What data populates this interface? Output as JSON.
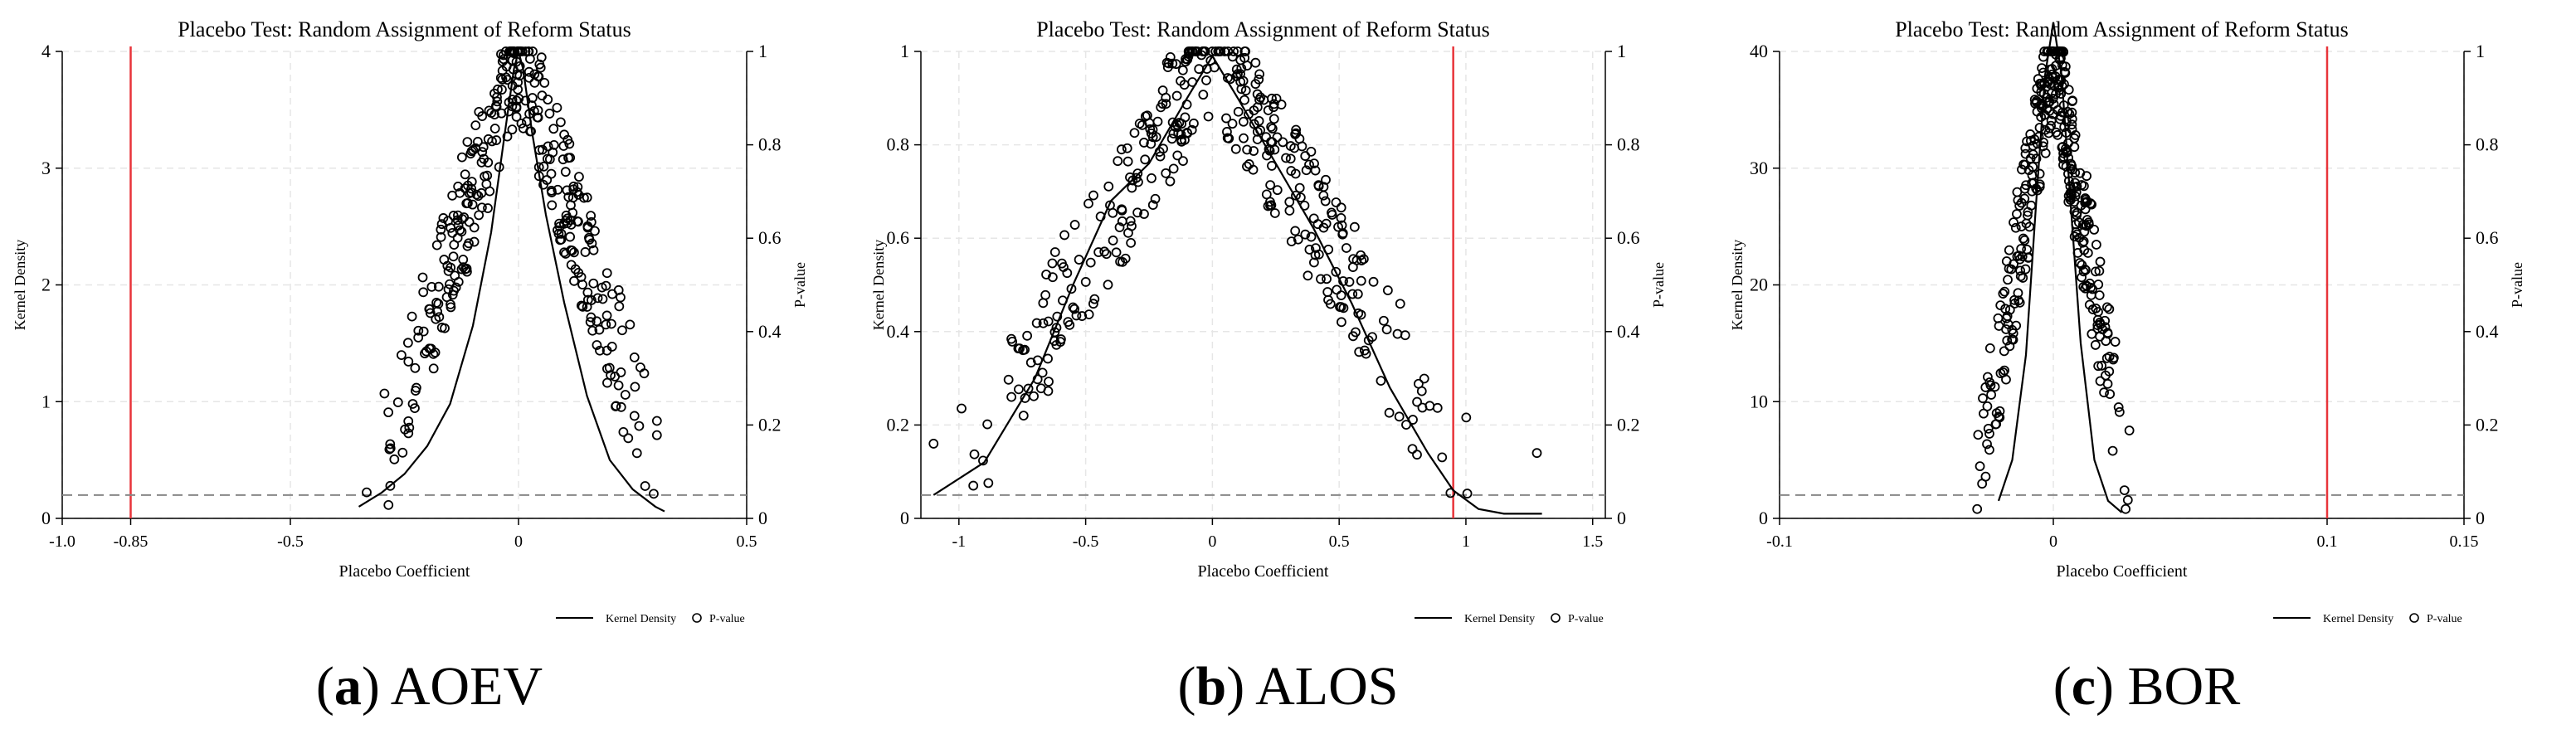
{
  "charts": [
    {
      "caption_letter": "a",
      "caption_name": "AOEV",
      "chart_data": {
        "type": "scatter",
        "title": "Placebo Test: Random Assignment of Reform Status",
        "xlabel": "Placebo Coefficient",
        "ylabel_left": "Kernel Density",
        "ylabel_right": "P-value",
        "xlim": [
          -1.0,
          0.5
        ],
        "ylim_left": [
          0,
          4
        ],
        "ylim_right": [
          0,
          1
        ],
        "xticks": [
          "-1.0",
          "-0.85",
          "-0.5",
          "0",
          "0.5"
        ],
        "xtick_values": [
          -1.0,
          -0.85,
          -0.5,
          0,
          0.5
        ],
        "yticks_left": [
          "0",
          "1",
          "2",
          "3",
          "4"
        ],
        "yticks_right": [
          "0",
          "0.2",
          "0.4",
          "0.6",
          "0.8",
          "1"
        ],
        "vline": -0.85,
        "hline_pvalue": 0.05,
        "grid": true,
        "legend": {
          "position": "bottom-right",
          "entries": [
            "Kernel Density",
            "P-value"
          ]
        },
        "series": [
          {
            "name": "Kernel Density",
            "type": "line",
            "x": [
              -0.35,
              -0.3,
              -0.25,
              -0.2,
              -0.15,
              -0.1,
              -0.06,
              -0.03,
              -0.01,
              0.0,
              0.01,
              0.03,
              0.06,
              0.1,
              0.15,
              0.2,
              0.25,
              0.3,
              0.32
            ],
            "y": [
              0.1,
              0.22,
              0.38,
              0.62,
              0.98,
              1.65,
              2.45,
              3.3,
              3.85,
              4.0,
              3.85,
              3.3,
              2.6,
              1.85,
              1.05,
              0.5,
              0.25,
              0.1,
              0.06
            ]
          },
          {
            "name": "P-value",
            "type": "scatter",
            "spread": 0.34,
            "center": 0.0,
            "count": 360,
            "seed": 7
          }
        ]
      }
    },
    {
      "caption_letter": "b",
      "caption_name": "ALOS",
      "chart_data": {
        "type": "scatter",
        "title": "Placebo Test: Random Assignment of Reform Status",
        "xlabel": "Placebo Coefficient",
        "ylabel_left": "Kernel Density",
        "ylabel_right": "P-value",
        "xlim": [
          -1.15,
          1.55
        ],
        "ylim_left": [
          0,
          1
        ],
        "ylim_right": [
          0,
          1
        ],
        "xticks": [
          "-1",
          "-0.5",
          "0",
          "0.5",
          "1",
          "1.5"
        ],
        "xtick_values": [
          -1,
          -0.5,
          0,
          0.5,
          1,
          1.5
        ],
        "yticks_left": [
          "0",
          "0.2",
          "0.4",
          "0.6",
          "0.8",
          "1"
        ],
        "yticks_right": [
          "0",
          "0.2",
          "0.4",
          "0.6",
          "0.8",
          "1"
        ],
        "vline": 0.95,
        "hline_pvalue": 0.05,
        "grid": true,
        "legend": {
          "position": "bottom-right",
          "entries": [
            "Kernel Density",
            "P-value"
          ]
        },
        "series": [
          {
            "name": "Kernel Density",
            "type": "line",
            "x": [
              -1.1,
              -0.9,
              -0.7,
              -0.55,
              -0.4,
              -0.25,
              -0.1,
              0.0,
              0.1,
              0.25,
              0.4,
              0.55,
              0.7,
              0.85,
              0.95,
              1.05,
              1.15,
              1.3
            ],
            "y": [
              0.05,
              0.12,
              0.3,
              0.5,
              0.68,
              0.76,
              0.9,
              0.99,
              0.9,
              0.76,
              0.62,
              0.46,
              0.28,
              0.14,
              0.06,
              0.02,
              0.01,
              0.01
            ]
          },
          {
            "name": "P-value",
            "type": "scatter",
            "spread": 1.1,
            "center": 0.0,
            "count": 380,
            "seed": 13,
            "outliers": [
              [
                1.28,
                0.14
              ],
              [
                -1.1,
                0.16
              ]
            ]
          }
        ]
      }
    },
    {
      "caption_letter": "c",
      "caption_name": "BOR",
      "chart_data": {
        "type": "scatter",
        "title": "Placebo Test: Random Assignment of Reform Status",
        "xlabel": "Placebo Coefficient",
        "ylabel_left": "Kernel Density",
        "ylabel_right": "P-value",
        "xlim": [
          -0.1,
          0.15
        ],
        "ylim_left": [
          0,
          40
        ],
        "ylim_right": [
          0,
          1
        ],
        "xticks": [
          "-0.1",
          "0",
          "0.1",
          "0.15"
        ],
        "xtick_values": [
          -0.1,
          0,
          0.1,
          0.15
        ],
        "yticks_left": [
          "0",
          "10",
          "20",
          "30",
          "40"
        ],
        "yticks_right": [
          "0",
          "0.2",
          "0.4",
          "0.6",
          "0.8",
          "1"
        ],
        "vline": 0.1,
        "hline_pvalue": 0.05,
        "grid": true,
        "legend": {
          "position": "bottom-right",
          "entries": [
            "Kernel Density",
            "P-value"
          ]
        },
        "series": [
          {
            "name": "Kernel Density",
            "type": "line",
            "x": [
              -0.02,
              -0.015,
              -0.01,
              -0.006,
              -0.003,
              0.0,
              0.003,
              0.006,
              0.01,
              0.015,
              0.02,
              0.025
            ],
            "y": [
              1.5,
              5,
              14,
              28,
              38,
              42.5,
              38,
              28,
              15,
              5,
              1.5,
              0.5
            ]
          },
          {
            "name": "P-value",
            "type": "scatter",
            "spread": 0.03,
            "center": 0.0,
            "count": 360,
            "seed": 21
          }
        ]
      }
    }
  ]
}
